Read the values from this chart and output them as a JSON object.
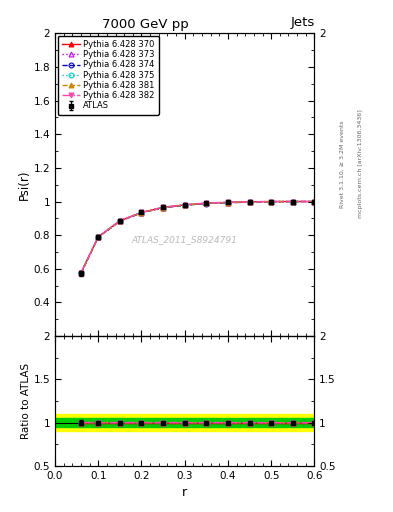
{
  "title": "7000 GeV pp",
  "title_right": "Jets",
  "ylabel_main": "Psi(r)",
  "ylabel_ratio": "Ratio to ATLAS",
  "xlabel": "r",
  "watermark": "ATLAS_2011_S8924791",
  "right_label_top": "Rivet 3.1.10, ≥ 3.2M events",
  "right_label_bot": "mcplots.cern.ch [arXiv:1306.3436]",
  "x_data": [
    0.06,
    0.1,
    0.15,
    0.2,
    0.25,
    0.3,
    0.35,
    0.4,
    0.45,
    0.5,
    0.55,
    0.6
  ],
  "atlas_y": [
    0.575,
    0.79,
    0.885,
    0.935,
    0.965,
    0.98,
    0.99,
    0.995,
    0.998,
    1.0,
    1.0,
    1.0
  ],
  "atlas_yerr": [
    0.015,
    0.01,
    0.008,
    0.006,
    0.005,
    0.004,
    0.003,
    0.003,
    0.002,
    0.002,
    0.002,
    0.002
  ],
  "pythia_370_y": [
    0.575,
    0.79,
    0.885,
    0.935,
    0.965,
    0.98,
    0.99,
    0.995,
    0.998,
    1.0,
    1.0,
    1.0
  ],
  "pythia_373_y": [
    0.574,
    0.789,
    0.884,
    0.934,
    0.964,
    0.979,
    0.989,
    0.994,
    0.997,
    0.999,
    1.0,
    1.0
  ],
  "pythia_374_y": [
    0.573,
    0.788,
    0.883,
    0.933,
    0.963,
    0.978,
    0.988,
    0.993,
    0.996,
    0.999,
    1.0,
    1.0
  ],
  "pythia_375_y": [
    0.576,
    0.791,
    0.886,
    0.936,
    0.966,
    0.981,
    0.991,
    0.996,
    0.999,
    1.0,
    1.0,
    1.0
  ],
  "pythia_381_y": [
    0.574,
    0.789,
    0.884,
    0.934,
    0.964,
    0.979,
    0.989,
    0.994,
    0.997,
    0.999,
    1.0,
    1.0
  ],
  "pythia_382_y": [
    0.576,
    0.791,
    0.886,
    0.936,
    0.966,
    0.981,
    0.991,
    0.996,
    0.999,
    1.0,
    1.0,
    1.0
  ],
  "color_370": "#ff0000",
  "color_373": "#cc00ff",
  "color_374": "#0000cc",
  "color_375": "#00cccc",
  "color_381": "#cc8800",
  "color_382": "#ff44aa",
  "atlas_color": "#000000",
  "xlim": [
    0.0,
    0.6
  ],
  "ylim_main": [
    0.2,
    2.0
  ],
  "ylim_ratio": [
    0.5,
    2.0
  ],
  "yticks_main": [
    0.4,
    0.6,
    0.8,
    1.0,
    1.2,
    1.4,
    1.6,
    1.8,
    2.0
  ],
  "yticks_ratio": [
    0.5,
    1.0,
    1.5,
    2.0
  ],
  "ytick_labels_ratio": [
    "0.5",
    "1",
    "1.5",
    "2"
  ],
  "green_band_hw": 0.05,
  "yellow_band_hw": 0.1
}
